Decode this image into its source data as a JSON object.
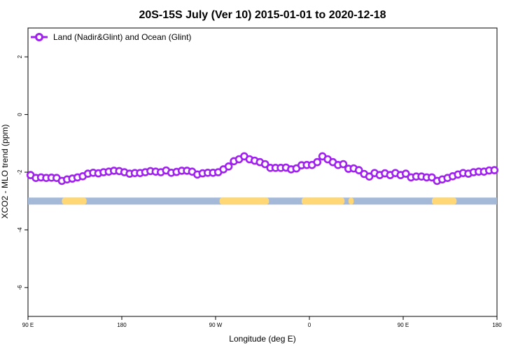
{
  "chart_data": {
    "type": "line",
    "title": "20S-15S July (Ver 10)   2015-01-01 to 2020-12-18",
    "xlabel": "Longitude (deg E)",
    "ylabel": "XCO2 - MLO trend (ppm)",
    "xlim": [
      90,
      450
    ],
    "ylim": [
      -7,
      3
    ],
    "x_ticks": [
      {
        "value": 90,
        "label": "90 E"
      },
      {
        "value": 162,
        "label": "180"
      },
      {
        "value": 234,
        "label": "90 W"
      },
      {
        "value": 306,
        "label": "0"
      },
      {
        "value": 378,
        "label": "90 E"
      },
      {
        "value": 450,
        "label": "180"
      }
    ],
    "y_ticks": [
      2,
      0,
      -2,
      -4,
      -6
    ],
    "legend": {
      "placement": "top-left"
    },
    "series": [
      {
        "name": "Land (Nadir&Glint) and Ocean (Glint)",
        "color": "#a020f0",
        "x": [
          92,
          96,
          100,
          104,
          108,
          112,
          116,
          120,
          124,
          128,
          132,
          136,
          140,
          144,
          148,
          152,
          156,
          160,
          164,
          168,
          172,
          176,
          180,
          184,
          188,
          192,
          196,
          200,
          204,
          208,
          212,
          216,
          220,
          224,
          228,
          232,
          236,
          240,
          244,
          248,
          252,
          256,
          260,
          264,
          268,
          272,
          276,
          280,
          284,
          288,
          292,
          296,
          300,
          304,
          308,
          312,
          316,
          320,
          324,
          328,
          332,
          336,
          340,
          344,
          348,
          352,
          356,
          360,
          364,
          368,
          372,
          376,
          380,
          384,
          388,
          392,
          396,
          400,
          404,
          408,
          412,
          416,
          420,
          424,
          428,
          432,
          436,
          440,
          444,
          448
        ],
        "y": [
          -2.1,
          -2.2,
          -2.18,
          -2.2,
          -2.19,
          -2.2,
          -2.3,
          -2.25,
          -2.22,
          -2.18,
          -2.14,
          -2.05,
          -2.02,
          -2.04,
          -2.0,
          -1.98,
          -1.95,
          -1.96,
          -2.0,
          -2.05,
          -2.03,
          -2.03,
          -2.0,
          -1.96,
          -1.98,
          -2.0,
          -1.94,
          -2.02,
          -1.99,
          -1.95,
          -1.95,
          -1.98,
          -2.08,
          -2.04,
          -2.02,
          -2.02,
          -2.0,
          -1.9,
          -1.8,
          -1.62,
          -1.55,
          -1.45,
          -1.55,
          -1.6,
          -1.65,
          -1.72,
          -1.85,
          -1.85,
          -1.85,
          -1.84,
          -1.9,
          -1.87,
          -1.76,
          -1.75,
          -1.75,
          -1.65,
          -1.45,
          -1.55,
          -1.65,
          -1.75,
          -1.72,
          -1.88,
          -1.87,
          -1.93,
          -2.06,
          -2.15,
          -2.03,
          -2.1,
          -2.04,
          -2.1,
          -2.03,
          -2.1,
          -2.05,
          -2.18,
          -2.15,
          -2.15,
          -2.18,
          -2.18,
          -2.3,
          -2.25,
          -2.2,
          -2.14,
          -2.08,
          -2.03,
          -2.05,
          -2.0,
          -1.98,
          -1.98,
          -1.94,
          -1.93
        ]
      }
    ],
    "surface_band": {
      "y": -3.0,
      "ocean_color": "#a4b8d8",
      "land_color": "#ffd774",
      "land_segments": [
        [
          116,
          135
        ],
        [
          237,
          275
        ],
        [
          300,
          333
        ],
        [
          336,
          340
        ],
        [
          400,
          419
        ]
      ]
    }
  }
}
